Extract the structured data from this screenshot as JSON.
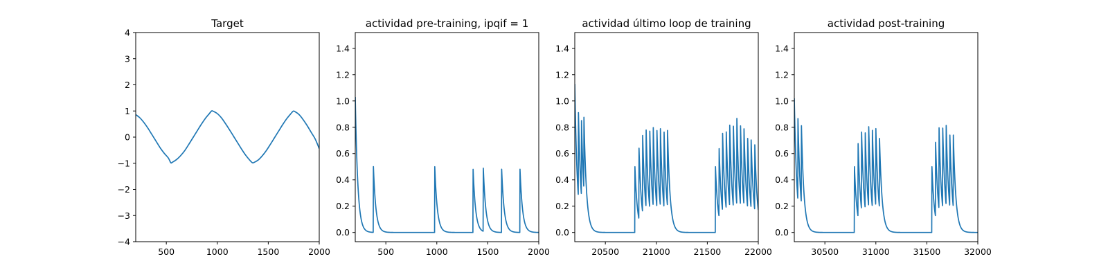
{
  "line_color": "#1f77b4",
  "chart_data": [
    {
      "type": "line",
      "title": "Target",
      "xlabel": "",
      "ylabel": "",
      "xlim": [
        200,
        2000
      ],
      "ylim": [
        -4,
        4
      ],
      "xticks": [
        500,
        1000,
        1500,
        2000
      ],
      "xtick_labels": [
        "500",
        "1000",
        "1500",
        "2000"
      ],
      "yticks": [
        -4,
        -3,
        -2,
        -1,
        0,
        1,
        2,
        3,
        4
      ],
      "ytick_labels": [
        "−4",
        "−3",
        "−2",
        "−1",
        "0",
        "1",
        "2",
        "3",
        "4"
      ],
      "series": [
        {
          "x": [
            200,
            240,
            280,
            320,
            360,
            400,
            440,
            480,
            520,
            544,
            560,
            600,
            640,
            680,
            720,
            760,
            800,
            840,
            880,
            920,
            944,
            960,
            1000,
            1040,
            1080,
            1120,
            1160,
            1200,
            1240,
            1280,
            1320,
            1344,
            1360,
            1400,
            1440,
            1480,
            1520,
            1560,
            1600,
            1640,
            1680,
            1720,
            1744,
            1760,
            1800,
            1840,
            1880,
            1920,
            1960,
            2000
          ],
          "y": [
            0.86,
            0.74,
            0.56,
            0.34,
            0.09,
            -0.16,
            -0.41,
            -0.62,
            -0.8,
            -0.98,
            -0.96,
            -0.86,
            -0.71,
            -0.52,
            -0.28,
            -0.03,
            0.22,
            0.47,
            0.7,
            0.89,
            1.0,
            0.99,
            0.9,
            0.74,
            0.52,
            0.28,
            0.03,
            -0.22,
            -0.47,
            -0.7,
            -0.89,
            -0.98,
            -0.97,
            -0.88,
            -0.72,
            -0.52,
            -0.28,
            -0.03,
            0.22,
            0.47,
            0.7,
            0.89,
            0.99,
            0.98,
            0.87,
            0.68,
            0.45,
            0.19,
            -0.07,
            -0.44
          ]
        }
      ]
    },
    {
      "type": "line",
      "title": "actividad pre-training, ipqif = 1",
      "xlabel": "",
      "ylabel": "",
      "xlim": [
        200,
        2000
      ],
      "ylim": [
        -0.07,
        1.52
      ],
      "xticks": [
        500,
        1000,
        1500,
        2000
      ],
      "xtick_labels": [
        "500",
        "1000",
        "1500",
        "2000"
      ],
      "yticks": [
        0.0,
        0.2,
        0.4,
        0.6,
        0.8,
        1.0,
        1.2,
        1.4
      ],
      "ytick_labels": [
        "0.0",
        "0.2",
        "0.4",
        "0.6",
        "0.8",
        "1.0",
        "1.2",
        "1.4"
      ],
      "series": [
        {
          "spike_times": [
            200,
            378,
            980,
            1355,
            1455,
            1635,
            1815
          ],
          "spike_heights": [
            1.03,
            0.5,
            0.5,
            0.5,
            0.5,
            0.5,
            0.5
          ],
          "decay_tau": 25
        }
      ]
    },
    {
      "type": "line",
      "title": "actividad último loop de training",
      "xlabel": "",
      "ylabel": "",
      "xlim": [
        20200,
        22000
      ],
      "ylim": [
        -0.07,
        1.52
      ],
      "xticks": [
        20500,
        21000,
        21500,
        22000
      ],
      "xtick_labels": [
        "20500",
        "21000",
        "21500",
        "22000"
      ],
      "yticks": [
        0.0,
        0.2,
        0.4,
        0.6,
        0.8,
        1.0,
        1.2,
        1.4
      ],
      "ytick_labels": [
        "0.0",
        "0.2",
        "0.4",
        "0.6",
        "0.8",
        "1.0",
        "1.2",
        "1.4"
      ],
      "series": [
        {
          "spike_times": [
            20200,
            20235,
            20265,
            20290,
            20790,
            20830,
            20865,
            20900,
            20935,
            20970,
            21005,
            21040,
            21075,
            21110,
            21580,
            21615,
            21650,
            21685,
            21720,
            21755,
            21790,
            21825,
            21860,
            21895,
            21930,
            21965
          ],
          "spike_heights": [
            1.13,
            0.67,
            0.6,
            0.55,
            0.5,
            0.54,
            0.61,
            0.59,
            0.61,
            0.6,
            0.61,
            0.59,
            0.6,
            0.58,
            0.5,
            0.54,
            0.59,
            0.61,
            0.62,
            0.64,
            0.66,
            0.63,
            0.58,
            0.55,
            0.52,
            0.52
          ],
          "decay_tau": 25
        }
      ]
    },
    {
      "type": "line",
      "title": "actividad post-training",
      "xlabel": "",
      "ylabel": "",
      "xlim": [
        30200,
        32000
      ],
      "ylim": [
        -0.07,
        1.52
      ],
      "xticks": [
        30500,
        31000,
        31500,
        32000
      ],
      "xtick_labels": [
        "30500",
        "31000",
        "31500",
        "32000"
      ],
      "yticks": [
        0.0,
        0.2,
        0.4,
        0.6,
        0.8,
        1.0,
        1.2,
        1.4
      ],
      "ytick_labels": [
        "0.0",
        "0.2",
        "0.4",
        "0.6",
        "0.8",
        "1.0",
        "1.2",
        "1.4"
      ],
      "series": [
        {
          "spike_times": [
            30200,
            30235,
            30270,
            30790,
            30825,
            30860,
            30895,
            30930,
            30965,
            31000,
            31035,
            31550,
            31585,
            31620,
            31655,
            31690,
            31725,
            31760
          ],
          "spike_heights": [
            1.02,
            0.65,
            0.59,
            0.5,
            0.58,
            0.59,
            0.6,
            0.61,
            0.61,
            0.59,
            0.55,
            0.5,
            0.59,
            0.62,
            0.63,
            0.61,
            0.57,
            0.55
          ],
          "decay_tau": 25
        }
      ]
    }
  ]
}
